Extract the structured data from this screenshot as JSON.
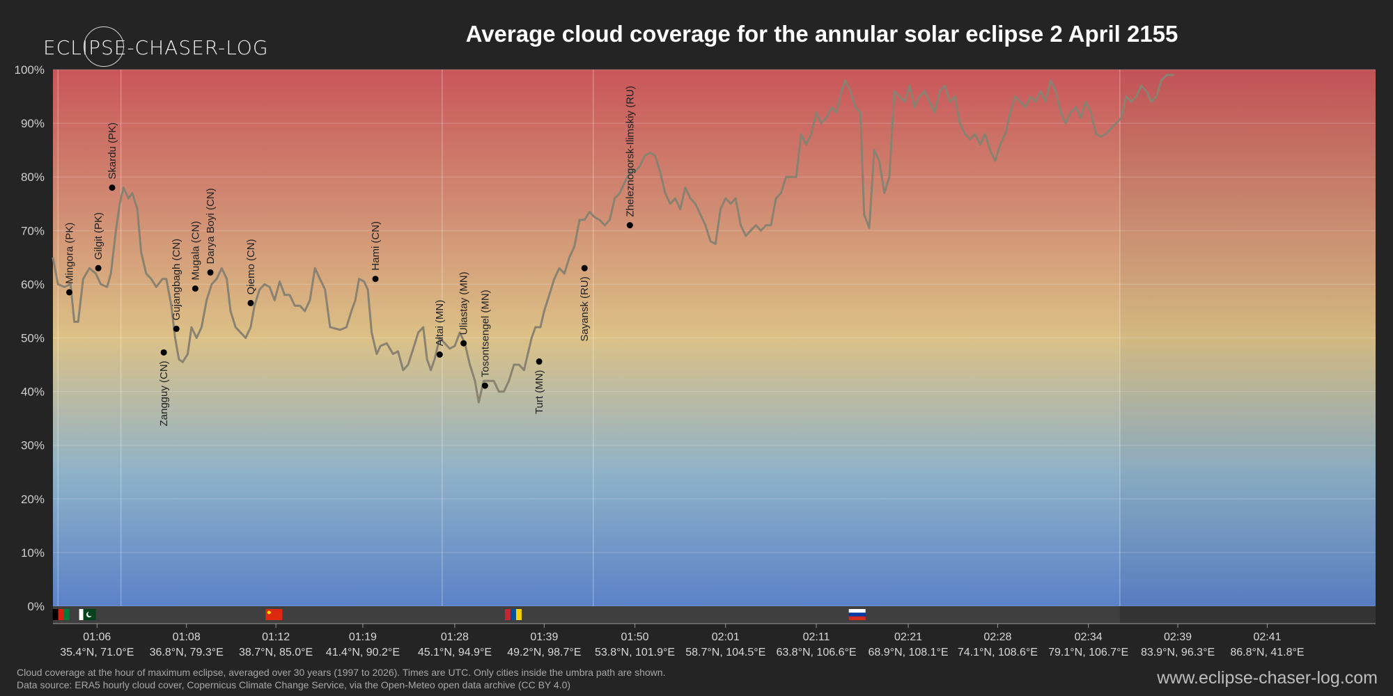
{
  "logo": {
    "text": "ECLIPSE-CHASER-LOG"
  },
  "title": "Average cloud coverage for the annular solar eclipse 2 April 2155",
  "footnote": {
    "line1": "Cloud coverage at the hour of maximum eclipse, averaged over 30 years (1997 to 2026). Times are UTC. Only cities inside the umbra path are shown.",
    "line2": "Data source: ERA5 hourly cloud cover, Copernicus Climate Change Service, via the Open-Meteo open data archive (CC BY 4.0)"
  },
  "website": "www.eclipse-chaser-log.com",
  "colors": {
    "background": "#242424",
    "gradient_top": "#c9565a",
    "gradient_mid": "#dcc187",
    "gradient_bottom": "#5b82c8",
    "line": "#8a8270",
    "marker": "#000000"
  },
  "chart_data": {
    "type": "line",
    "x_unit": "minutes after 01:02 UTC",
    "ylim": [
      0,
      100
    ],
    "yticks": [
      "0%",
      "10%",
      "20%",
      "30%",
      "40%",
      "50%",
      "60%",
      "70%",
      "80%",
      "90%",
      "100%"
    ],
    "xlim": [
      0,
      105
    ],
    "xticks": [
      {
        "x": 3.5,
        "time": "01:06",
        "coord": "35.4°N, 71.0°E"
      },
      {
        "x": 10.6,
        "time": "01:08",
        "coord": "36.8°N, 79.3°E"
      },
      {
        "x": 17.7,
        "time": "01:12",
        "coord": "38.7°N, 85.0°E"
      },
      {
        "x": 24.6,
        "time": "01:19",
        "coord": "41.4°N, 90.2°E"
      },
      {
        "x": 31.9,
        "time": "01:28",
        "coord": "45.1°N, 94.9°E"
      },
      {
        "x": 39.0,
        "time": "01:39",
        "coord": "49.2°N, 98.7°E"
      },
      {
        "x": 46.2,
        "time": "01:50",
        "coord": "53.8°N, 101.9°E"
      },
      {
        "x": 53.4,
        "time": "02:01",
        "coord": "58.7°N, 104.5°E"
      },
      {
        "x": 60.6,
        "time": "02:11",
        "coord": "63.8°N, 106.6°E"
      },
      {
        "x": 67.9,
        "time": "02:21",
        "coord": "68.9°N, 108.1°E"
      },
      {
        "x": 75.0,
        "time": "02:28",
        "coord": "74.1°N, 108.6°E"
      },
      {
        "x": 82.2,
        "time": "02:34",
        "coord": "79.1°N, 106.7°E"
      },
      {
        "x": 89.3,
        "time": "02:39",
        "coord": "83.9°N, 96.3°E"
      },
      {
        "x": 96.4,
        "time": "02:41",
        "coord": "86.8°N, 41.8°E"
      }
    ],
    "border_lines": [
      0.4,
      5.4,
      30.9,
      42.9,
      84.7
    ],
    "flags": [
      {
        "x": 0.7,
        "country": "AF",
        "colors": [
          "#000000",
          "#d32011",
          "#007a36"
        ]
      },
      {
        "x": 2.8,
        "country": "PK",
        "colors": [
          "#ffffff",
          "#01411c"
        ]
      },
      {
        "x": 17.6,
        "country": "CN",
        "colors": [
          "#de2910",
          "#ffde00"
        ]
      },
      {
        "x": 36.6,
        "country": "MN",
        "colors": [
          "#c4272f",
          "#015197",
          "#f9cf02"
        ]
      },
      {
        "x": 63.9,
        "country": "RU",
        "colors": [
          "#ffffff",
          "#0039a6",
          "#d52b1e"
        ]
      }
    ],
    "grey_band": {
      "x_start": 84.7,
      "x_end": 105
    },
    "series": [
      {
        "values": [
          [
            0,
            65
          ],
          [
            0.4,
            60
          ],
          [
            0.9,
            59.5
          ],
          [
            1.4,
            60
          ],
          [
            1.7,
            53
          ],
          [
            2.0,
            53
          ],
          [
            2.4,
            61
          ],
          [
            2.9,
            63
          ],
          [
            3.4,
            62
          ],
          [
            3.8,
            60
          ],
          [
            4.3,
            59.5
          ],
          [
            4.6,
            62
          ],
          [
            5.0,
            70
          ],
          [
            5.3,
            75
          ],
          [
            5.6,
            78
          ],
          [
            6.0,
            76
          ],
          [
            6.3,
            77
          ],
          [
            6.7,
            74
          ],
          [
            7.0,
            66
          ],
          [
            7.4,
            62
          ],
          [
            7.8,
            61
          ],
          [
            8.2,
            59.5
          ],
          [
            8.7,
            61
          ],
          [
            9.0,
            61
          ],
          [
            9.4,
            56
          ],
          [
            9.7,
            50
          ],
          [
            10.0,
            46
          ],
          [
            10.3,
            45.5
          ],
          [
            10.7,
            47
          ],
          [
            11.0,
            52
          ],
          [
            11.4,
            50
          ],
          [
            11.8,
            52
          ],
          [
            12.2,
            57
          ],
          [
            12.6,
            60
          ],
          [
            13.0,
            61
          ],
          [
            13.4,
            63
          ],
          [
            13.8,
            61
          ],
          [
            14.1,
            55
          ],
          [
            14.5,
            52
          ],
          [
            14.9,
            51
          ],
          [
            15.3,
            50
          ],
          [
            15.7,
            52
          ],
          [
            16.0,
            56
          ],
          [
            16.4,
            59
          ],
          [
            16.8,
            60
          ],
          [
            17.2,
            59.5
          ],
          [
            17.6,
            57
          ],
          [
            18.0,
            60.5
          ],
          [
            18.4,
            58
          ],
          [
            18.8,
            58
          ],
          [
            19.2,
            56
          ],
          [
            19.6,
            56
          ],
          [
            20.0,
            55
          ],
          [
            20.4,
            57
          ],
          [
            20.8,
            63
          ],
          [
            21.2,
            61
          ],
          [
            21.6,
            59
          ],
          [
            22.0,
            52
          ],
          [
            22.8,
            51.5
          ],
          [
            23.3,
            52
          ],
          [
            23.7,
            55
          ],
          [
            24.0,
            57
          ],
          [
            24.3,
            61
          ],
          [
            24.7,
            60.5
          ],
          [
            25.0,
            59
          ],
          [
            25.3,
            51
          ],
          [
            25.7,
            47
          ],
          [
            26.0,
            48.5
          ],
          [
            26.5,
            49
          ],
          [
            27.0,
            47
          ],
          [
            27.4,
            47.5
          ],
          [
            27.8,
            44
          ],
          [
            28.2,
            45
          ],
          [
            28.6,
            48
          ],
          [
            29.0,
            51
          ],
          [
            29.4,
            52
          ],
          [
            29.7,
            46
          ],
          [
            30.0,
            44
          ],
          [
            30.3,
            46
          ],
          [
            30.7,
            50
          ],
          [
            31.1,
            49
          ],
          [
            31.5,
            48
          ],
          [
            31.9,
            48.5
          ],
          [
            32.3,
            51
          ],
          [
            32.7,
            49
          ],
          [
            33.1,
            45
          ],
          [
            33.5,
            42
          ],
          [
            33.8,
            38
          ],
          [
            34.2,
            42
          ],
          [
            34.6,
            42
          ],
          [
            35.0,
            42
          ],
          [
            35.4,
            40
          ],
          [
            35.8,
            40
          ],
          [
            36.2,
            42
          ],
          [
            36.6,
            45
          ],
          [
            37.0,
            45
          ],
          [
            37.4,
            44
          ],
          [
            37.7,
            47
          ],
          [
            38.0,
            50
          ],
          [
            38.3,
            52
          ],
          [
            38.7,
            52
          ],
          [
            39.0,
            55
          ],
          [
            39.4,
            58
          ],
          [
            39.8,
            61
          ],
          [
            40.2,
            63
          ],
          [
            40.6,
            62
          ],
          [
            41.0,
            65
          ],
          [
            41.4,
            67
          ],
          [
            41.8,
            72
          ],
          [
            42.2,
            72
          ],
          [
            42.6,
            73.5
          ],
          [
            43.0,
            72.5
          ],
          [
            43.4,
            72
          ],
          [
            43.8,
            71
          ],
          [
            44.2,
            72
          ],
          [
            44.6,
            76
          ],
          [
            45.0,
            77
          ],
          [
            45.4,
            79
          ],
          [
            45.8,
            81
          ],
          [
            46.2,
            81
          ],
          [
            46.6,
            82
          ],
          [
            47.0,
            84
          ],
          [
            47.4,
            84.5
          ],
          [
            47.8,
            84
          ],
          [
            48.2,
            81
          ],
          [
            48.6,
            77
          ],
          [
            49.0,
            75
          ],
          [
            49.4,
            76
          ],
          [
            49.8,
            74
          ],
          [
            50.2,
            78
          ],
          [
            50.6,
            76
          ],
          [
            51.0,
            75
          ],
          [
            51.4,
            73
          ],
          [
            51.8,
            71
          ],
          [
            52.2,
            68
          ],
          [
            52.6,
            67.5
          ],
          [
            53.0,
            74
          ],
          [
            53.4,
            76
          ],
          [
            53.8,
            75
          ],
          [
            54.2,
            76
          ],
          [
            54.6,
            71
          ],
          [
            55.0,
            69
          ],
          [
            55.4,
            70
          ],
          [
            55.8,
            71
          ],
          [
            56.2,
            70
          ],
          [
            56.6,
            71
          ],
          [
            57.0,
            71
          ],
          [
            57.4,
            76
          ],
          [
            57.8,
            77
          ],
          [
            58.2,
            80
          ],
          [
            58.6,
            80
          ],
          [
            59.0,
            80
          ],
          [
            59.4,
            88
          ],
          [
            59.8,
            86
          ],
          [
            60.2,
            88
          ],
          [
            60.6,
            92
          ],
          [
            61.0,
            90
          ],
          [
            61.4,
            91
          ],
          [
            61.8,
            93
          ],
          [
            62.2,
            92
          ],
          [
            62.6,
            96
          ],
          [
            62.9,
            98
          ],
          [
            63.3,
            96
          ],
          [
            63.7,
            93
          ],
          [
            64.1,
            92
          ],
          [
            64.4,
            73
          ],
          [
            64.8,
            70.5
          ],
          [
            65.2,
            85
          ],
          [
            65.6,
            83
          ],
          [
            66.0,
            77
          ],
          [
            66.4,
            80
          ],
          [
            66.8,
            96
          ],
          [
            67.2,
            95
          ],
          [
            67.6,
            94
          ],
          [
            68.0,
            97
          ],
          [
            68.4,
            93
          ],
          [
            68.8,
            95
          ],
          [
            69.2,
            96
          ],
          [
            69.6,
            94
          ],
          [
            70.0,
            92
          ],
          [
            70.4,
            96
          ],
          [
            70.8,
            97
          ],
          [
            71.2,
            94
          ],
          [
            71.6,
            95
          ],
          [
            72.0,
            90
          ],
          [
            72.4,
            88
          ],
          [
            72.8,
            87
          ],
          [
            73.2,
            88
          ],
          [
            73.6,
            86
          ],
          [
            74.0,
            88
          ],
          [
            74.4,
            85
          ],
          [
            74.8,
            83
          ],
          [
            75.2,
            86
          ],
          [
            75.6,
            88
          ],
          [
            76.0,
            92
          ],
          [
            76.4,
            95
          ],
          [
            76.8,
            94
          ],
          [
            77.2,
            93
          ],
          [
            77.6,
            95
          ],
          [
            78.0,
            94
          ],
          [
            78.4,
            96
          ],
          [
            78.8,
            94
          ],
          [
            79.2,
            98
          ],
          [
            79.6,
            96
          ],
          [
            80.0,
            92
          ],
          [
            80.4,
            90
          ],
          [
            80.8,
            92
          ],
          [
            81.2,
            93
          ],
          [
            81.6,
            91
          ],
          [
            82.0,
            94
          ],
          [
            82.4,
            92
          ],
          [
            82.8,
            88
          ],
          [
            83.2,
            87.5
          ],
          [
            83.6,
            88
          ],
          [
            84.0,
            89
          ],
          [
            84.4,
            90
          ],
          [
            84.8,
            91
          ],
          [
            85.2,
            95
          ],
          [
            85.6,
            94
          ],
          [
            86.0,
            95
          ],
          [
            86.4,
            97
          ],
          [
            86.8,
            96
          ],
          [
            87.2,
            94
          ],
          [
            87.6,
            95
          ],
          [
            88.0,
            98
          ],
          [
            88.4,
            99
          ],
          [
            89.0,
            99
          ]
        ]
      }
    ],
    "cities": [
      {
        "name": "Mingora (PK)",
        "x": 1.3,
        "y": 58.5,
        "side": "above"
      },
      {
        "name": "Gilgit (PK)",
        "x": 3.6,
        "y": 63,
        "side": "above"
      },
      {
        "name": "Skardu (PK)",
        "x": 4.7,
        "y": 78,
        "side": "above"
      },
      {
        "name": "Zangguy (CN)",
        "x": 8.8,
        "y": 47.3,
        "side": "below"
      },
      {
        "name": "Gujangbagh (CN)",
        "x": 9.8,
        "y": 51.7,
        "side": "above"
      },
      {
        "name": "Mugala (CN)",
        "x": 11.3,
        "y": 59.2,
        "side": "above"
      },
      {
        "name": "Darya Boyi (CN)",
        "x": 12.5,
        "y": 62.2,
        "side": "above"
      },
      {
        "name": "Qiemo (CN)",
        "x": 15.7,
        "y": 56.5,
        "side": "above"
      },
      {
        "name": "Hami (CN)",
        "x": 25.6,
        "y": 61,
        "side": "above"
      },
      {
        "name": "Altai (MN)",
        "x": 30.7,
        "y": 46.9,
        "side": "above"
      },
      {
        "name": "Uliastay (MN)",
        "x": 32.6,
        "y": 49,
        "side": "above"
      },
      {
        "name": "Tosontsengel (MN)",
        "x": 34.3,
        "y": 41.1,
        "side": "above"
      },
      {
        "name": "Turt (MN)",
        "x": 38.6,
        "y": 45.6,
        "side": "below"
      },
      {
        "name": "Sayansk (RU)",
        "x": 42.2,
        "y": 63,
        "side": "below"
      },
      {
        "name": "Zheleznogorsk-Ilimskiy (RU)",
        "x": 45.8,
        "y": 71,
        "side": "above"
      }
    ]
  }
}
